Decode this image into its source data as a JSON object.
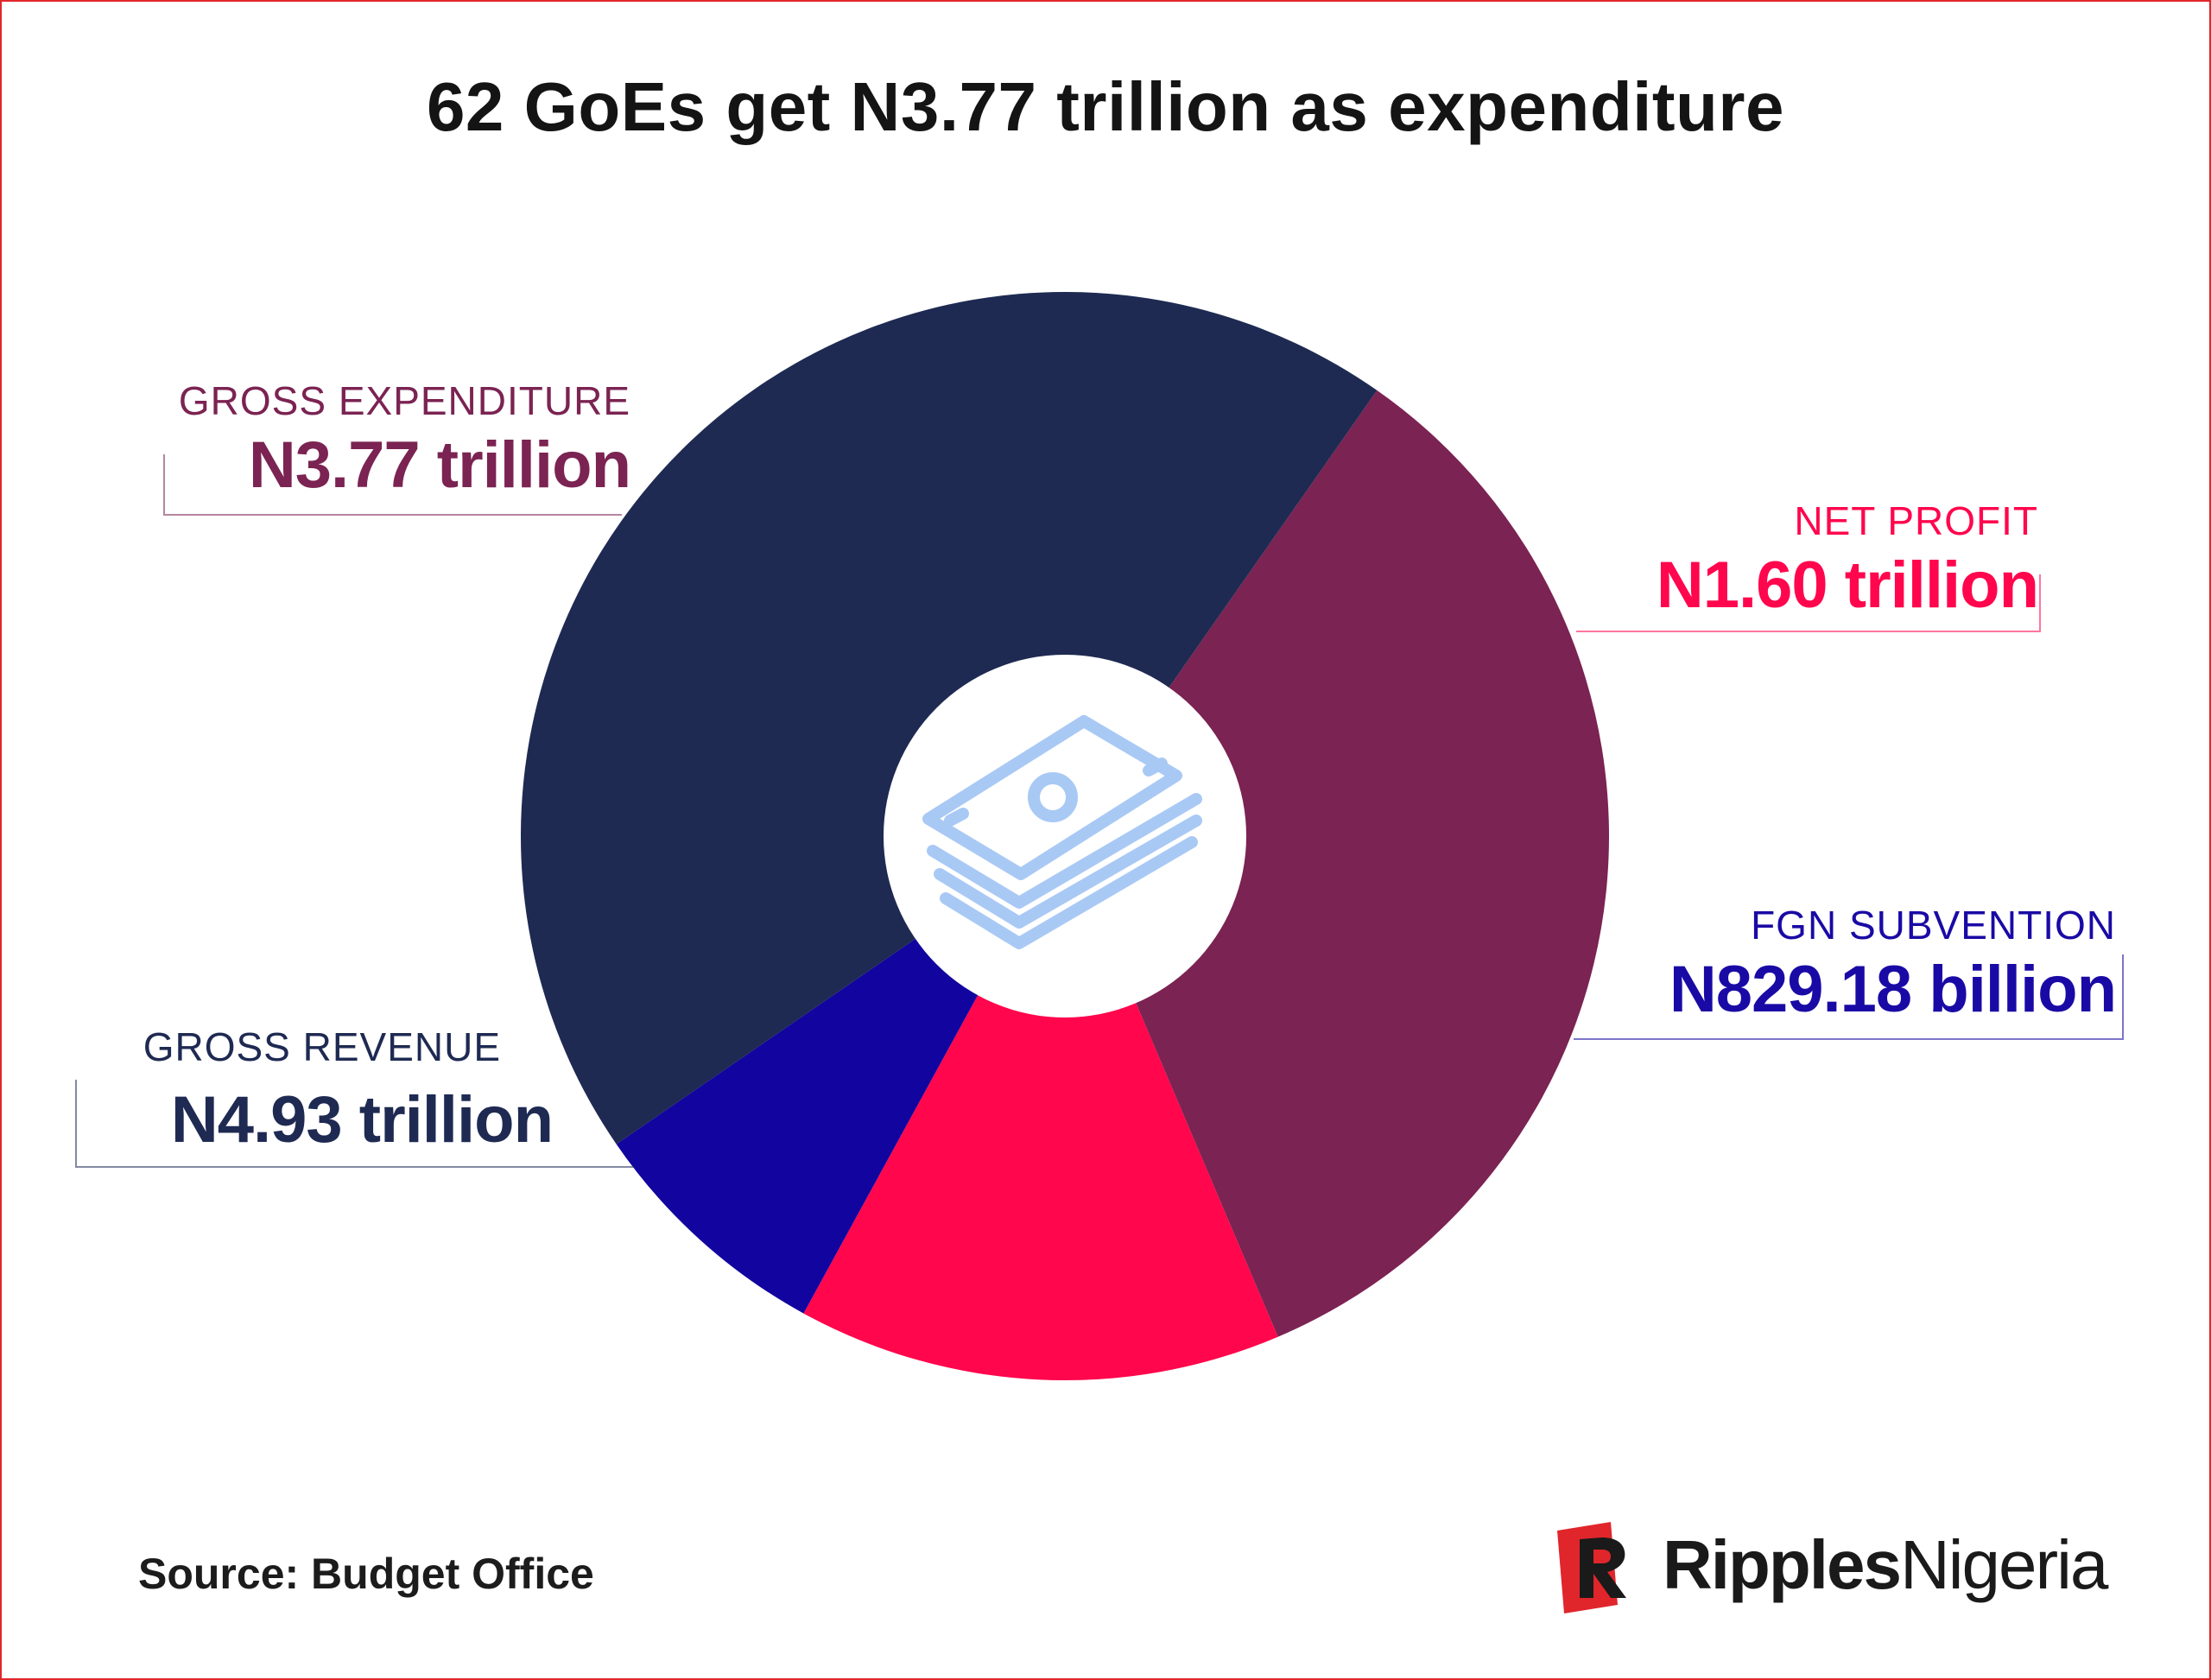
{
  "title": "62 GoEs get N3.77 trillion as expenditure",
  "source": "Source: Budget Office",
  "brand": {
    "bold": "Ripples",
    "regular": "Nigeria"
  },
  "center_icon": "money-stack-icon",
  "colors": {
    "gross_expenditure": "#7b2352",
    "net_profit": "#ff064d",
    "fgn_subvention": "#12049f",
    "gross_revenue": "#1e2a52",
    "icon": "#a9c9f5",
    "frame": "#e0262b"
  },
  "chart_data": {
    "type": "pie",
    "title": "62 GoEs get N3.77 trillion as expenditure",
    "units": "naira",
    "slices": [
      {
        "label": "GROSS EXPENDITURE",
        "display": "N3.77 trillion",
        "value": 3.77,
        "color": "#7b2352"
      },
      {
        "label": "NET PROFIT",
        "display": "N1.60 trillion",
        "value": 1.6,
        "color": "#ff064d"
      },
      {
        "label": "FGN SUBVENTION",
        "display": "N829.18 billion",
        "value": 0.82918,
        "color": "#12049f"
      },
      {
        "label": "GROSS REVENUE",
        "display": "N4.93 trillion",
        "value": 4.93,
        "color": "#1e2a52"
      }
    ]
  }
}
